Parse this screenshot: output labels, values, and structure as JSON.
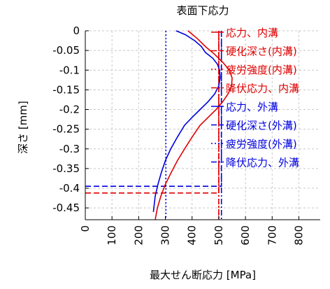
{
  "chart_data": {
    "type": "line",
    "title": "表面下応力",
    "xlabel": "最大せん断応力 [MPa]",
    "ylabel": "深さ [mm]",
    "xlim": [
      0,
      880
    ],
    "ylim": [
      -0.48,
      0
    ],
    "xticks": [
      0,
      100,
      200,
      300,
      400,
      500,
      600,
      700,
      800
    ],
    "yticks": [
      0,
      -0.05,
      -0.1,
      -0.15,
      -0.2,
      -0.25,
      -0.3,
      -0.35,
      -0.4,
      -0.45
    ],
    "xtick_labels": [
      "0",
      "100",
      "200",
      "300",
      "400",
      "500",
      "600",
      "700",
      "800"
    ],
    "ytick_labels": [
      "0",
      "-0.05",
      "-0.1",
      "-0.15",
      "-0.2",
      "-0.25",
      "-0.3",
      "-0.35",
      "-0.4",
      "-0.45"
    ],
    "grid": true,
    "legend_position": "right",
    "series": [
      {
        "name": "応力、内溝",
        "color": "#e00000",
        "style": "solid",
        "points": [
          [
            385,
            0
          ],
          [
            420,
            -0.02
          ],
          [
            450,
            -0.04
          ],
          [
            485,
            -0.06
          ],
          [
            515,
            -0.08
          ],
          [
            540,
            -0.1
          ],
          [
            550,
            -0.12
          ],
          [
            548,
            -0.14
          ],
          [
            535,
            -0.16
          ],
          [
            515,
            -0.18
          ],
          [
            490,
            -0.2
          ],
          [
            460,
            -0.22
          ],
          [
            430,
            -0.24
          ],
          [
            400,
            -0.27
          ],
          [
            372,
            -0.3
          ],
          [
            345,
            -0.33
          ],
          [
            322,
            -0.36
          ],
          [
            300,
            -0.39
          ],
          [
            283,
            -0.42
          ],
          [
            270,
            -0.45
          ],
          [
            262,
            -0.48
          ]
        ]
      },
      {
        "name": "硬化深さ(内溝)",
        "color": "#e00000",
        "style": "dashed",
        "points": [
          [
            0,
            -0.412
          ],
          [
            500,
            -0.412
          ],
          [
            500,
            0
          ]
        ]
      },
      {
        "name": "疲労強度(内溝)",
        "color": "#e00000",
        "style": "dotted",
        "points": [
          [
            500,
            0
          ],
          [
            500,
            -0.48
          ]
        ]
      },
      {
        "name": "降伏応力、内溝",
        "color": "#e00000",
        "style": "dashdot",
        "points": [
          [
            500,
            0
          ],
          [
            500,
            -0.48
          ]
        ]
      },
      {
        "name": "応力、外溝",
        "color": "#0000e0",
        "style": "solid",
        "points": [
          [
            340,
            0
          ],
          [
            375,
            -0.01
          ],
          [
            410,
            -0.025
          ],
          [
            435,
            -0.04
          ],
          [
            450,
            -0.055
          ],
          [
            478,
            -0.07
          ],
          [
            495,
            -0.085
          ],
          [
            503,
            -0.1
          ],
          [
            505,
            -0.12
          ],
          [
            500,
            -0.14
          ],
          [
            485,
            -0.16
          ],
          [
            460,
            -0.18
          ],
          [
            430,
            -0.2
          ],
          [
            400,
            -0.22
          ],
          [
            372,
            -0.24
          ],
          [
            345,
            -0.27
          ],
          [
            320,
            -0.3
          ],
          [
            300,
            -0.33
          ],
          [
            285,
            -0.36
          ],
          [
            272,
            -0.39
          ],
          [
            262,
            -0.42
          ],
          [
            255,
            -0.46
          ]
        ]
      },
      {
        "name": "硬化深さ(外溝)",
        "color": "#0000e0",
        "style": "dashed",
        "points": [
          [
            0,
            -0.395
          ],
          [
            510,
            -0.395
          ],
          [
            510,
            0
          ]
        ]
      },
      {
        "name": "疲労強度(外溝)",
        "color": "#0000e0",
        "style": "dotted",
        "points": [
          [
            302,
            0
          ],
          [
            302,
            -0.48
          ]
        ]
      },
      {
        "name": "降伏応力、外溝",
        "color": "#0000e0",
        "style": "dashdot",
        "points": [
          [
            510,
            0
          ],
          [
            510,
            -0.48
          ]
        ]
      }
    ]
  }
}
